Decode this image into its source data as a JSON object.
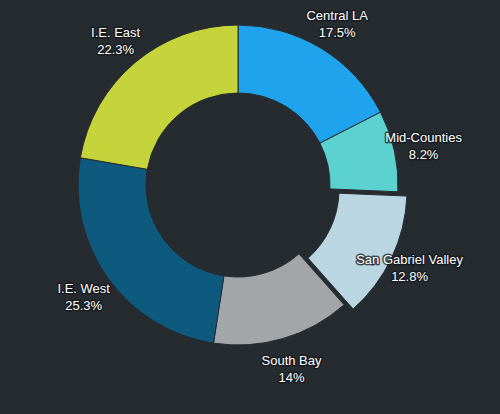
{
  "chart_data": {
    "type": "donut",
    "categories": [
      "Central LA",
      "Mid-Counties",
      "San Gabriel Valley",
      "South Bay",
      "I.E. West",
      "I.E. East"
    ],
    "values": [
      17.5,
      8.2,
      12.8,
      14,
      25.3,
      22.3
    ],
    "value_labels": [
      "17.5%",
      "8.2%",
      "12.8%",
      "14%",
      "25.3%",
      "22.3%"
    ],
    "colors": [
      "#1fa3ec",
      "#5cd2d0",
      "#b9d6e2",
      "#a3a6a9",
      "#0d5a7e",
      "#c6d43c"
    ],
    "data_labels": true
  }
}
